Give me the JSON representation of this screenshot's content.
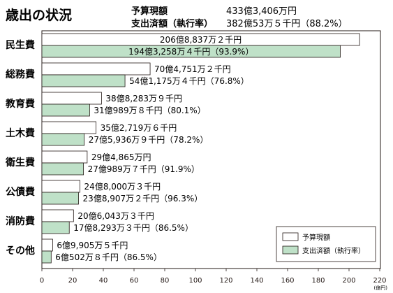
{
  "header": {
    "title": "歳出の状況",
    "budget_label": "予算現額",
    "budget_value": "433億3,406万円",
    "spent_label": "支出済額（執行率）",
    "spent_value": "382億53万５千円（88.2%）"
  },
  "colors": {
    "budget_fill": "#ffffff",
    "spent_fill": "#bfe1c8",
    "stroke": "#231815"
  },
  "chart_data": {
    "type": "bar",
    "orientation": "horizontal",
    "unit_label": "(億円)",
    "xlim": [
      0,
      220
    ],
    "xticks": [
      "0",
      "20",
      "40",
      "60",
      "80",
      "100",
      "120",
      "140",
      "160",
      "180",
      "200",
      "220"
    ],
    "grid": false,
    "legend_position": "bottom-right",
    "categories": [
      "民生費",
      "総務費",
      "教育費",
      "土木費",
      "衛生費",
      "公債費",
      "消防費",
      "その他"
    ],
    "series": [
      {
        "name": "予算現額",
        "values": [
          206.88,
          70.48,
          38.83,
          35.27,
          29.49,
          24.8,
          20.6,
          6.99
        ],
        "labels": [
          "206億8,837万２千円",
          "70億4,751万２千円",
          "38億8,283万９千円",
          "35億2,719万６千円",
          "29億4,865万円",
          "24億8,000万３千円",
          "20億6,043万３千円",
          "6億9,905万５千円"
        ]
      },
      {
        "name": "支出済額（執行率）",
        "values": [
          194.33,
          54.12,
          31.1,
          27.59,
          27.1,
          23.89,
          17.83,
          6.05
        ],
        "labels": [
          "194億3,258万４千円（93.9%）",
          "54億1,175万４千円（76.8%）",
          "31億989万８千円（80.1%）",
          "27億5,936万９千円（78.2%）",
          "27億989万７千円（91.9%）",
          "23億8,907万２千円（96.3%）",
          "17億8,293万３千円（86.5%）",
          "6億502万８千円（86.5%）"
        ]
      }
    ]
  }
}
